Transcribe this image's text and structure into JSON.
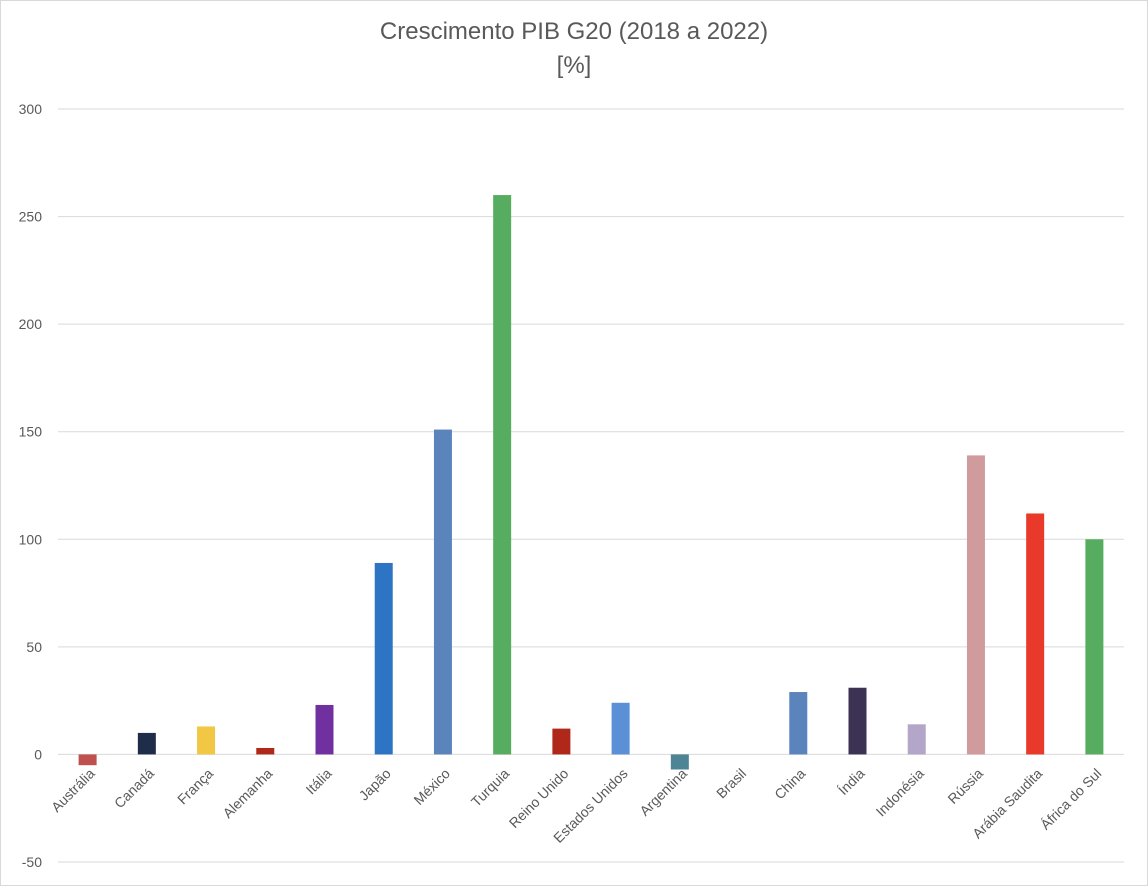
{
  "chart_data": {
    "type": "bar",
    "title": "Crescimento PIB G20 (2018 a 2022)",
    "subtitle": "[%]",
    "xlabel": "",
    "ylabel": "",
    "ylim": [
      -50,
      300
    ],
    "yticks": [
      -50,
      0,
      50,
      100,
      150,
      200,
      250,
      300
    ],
    "grid": true,
    "legend": "none",
    "categories": [
      "Austrália",
      "Canadá",
      "França",
      "Alemanha",
      "Itália",
      "Japão",
      "México",
      "Turquia",
      "Reino Unido",
      "Estados Unidos",
      "Argentina",
      "Brasil",
      "China",
      "Índia",
      "Indonésia",
      "Rússia",
      "Arábia Saudita",
      "África do Sul"
    ],
    "values": [
      -5,
      10,
      13,
      3,
      23,
      89,
      151,
      260,
      12,
      24,
      -7,
      0,
      29,
      31,
      14,
      139,
      112,
      100
    ],
    "colors": [
      "#c0504d",
      "#1f2d4a",
      "#f2c744",
      "#b0281a",
      "#7030a0",
      "#2e74c4",
      "#5b84bd",
      "#57ad5f",
      "#b0281a",
      "#5b8fd6",
      "#4e8596",
      "#ffffff",
      "#5b84bd",
      "#3b3254",
      "#b3a6c8",
      "#d09b9c",
      "#e8392b",
      "#57ad5f"
    ]
  }
}
